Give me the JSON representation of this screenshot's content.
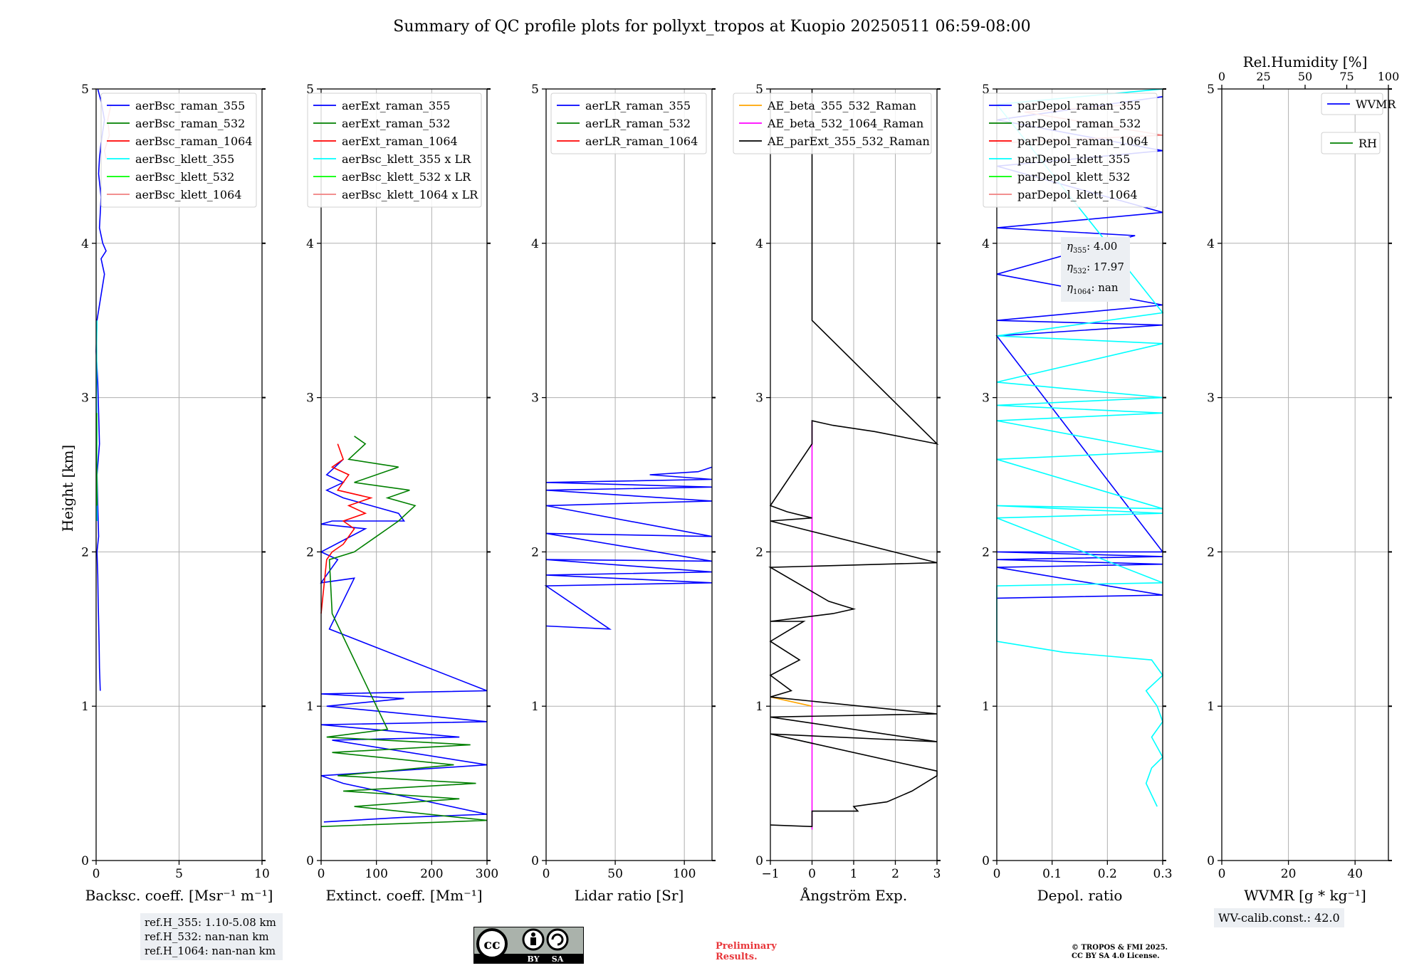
{
  "figure": {
    "title": "Summary of QC profile plots for pollyxt_tropos at Kuopio 20250511 06:59-08:00",
    "ylabel": "Height [km]",
    "colors": {
      "blue": "#0000ff",
      "green": "#008000",
      "red": "#ff0000",
      "cyan": "#00ffff",
      "lime": "#00ff00",
      "pink": "#f08080",
      "orange": "#ffa500",
      "magenta": "#ff00ff",
      "black": "#000000"
    }
  },
  "ref_heights": [
    "ref.H_355: 1.10-5.08 km",
    "ref.H_532: nan-nan km",
    "ref.H_1064: nan-nan km"
  ],
  "eta": {
    "e355_label": "η",
    "e355_sub": "355",
    "e355_value": ": 4.00",
    "e532_label": "η",
    "e532_sub": "532",
    "e532_value": ": 17.97",
    "e1064_label": "η",
    "e1064_sub": "1064",
    "e1064_value": ": nan"
  },
  "wv_calib": "WV-calib.const.: 42.0",
  "preliminary": [
    "Preliminary",
    "Results."
  ],
  "copyright": [
    "© TROPOS & FMI 2025.",
    "CC BY SA 4.0 License."
  ],
  "license_badge": {
    "by": "BY",
    "sa": "SA"
  },
  "chart_data": [
    {
      "type": "line",
      "xlabel": "Backsc. coeff. [Msr⁻¹ m⁻¹]",
      "ylabel": "Height [km]",
      "xlim": [
        0,
        10
      ],
      "ylim": [
        0,
        5
      ],
      "xticks": [
        0,
        5,
        10
      ],
      "yticks": [
        0,
        1,
        2,
        3,
        4,
        5
      ],
      "grid": true,
      "legend": "top-right",
      "series": [
        {
          "name": "aerBsc_raman_355",
          "color": "#0000ff",
          "x": [
            0.25,
            0.2,
            0.18,
            0.15,
            0.12,
            0.1,
            0.05,
            0.15,
            0.1,
            0.05,
            0.2,
            0.15,
            0.1,
            0.0,
            0.05,
            0.35,
            0.5,
            0.4,
            0.3,
            0.6,
            0.4,
            0.2,
            0.3,
            0.15,
            0.2,
            0.3,
            0.5,
            0.3,
            0.1
          ],
          "y": [
            1.1,
            1.25,
            1.4,
            1.55,
            1.7,
            1.85,
            2.0,
            2.1,
            2.3,
            2.5,
            2.7,
            2.9,
            3.1,
            3.3,
            3.5,
            3.7,
            3.8,
            3.85,
            3.9,
            3.95,
            4.0,
            4.1,
            4.3,
            4.45,
            4.55,
            4.65,
            4.8,
            4.92,
            5.0
          ]
        },
        {
          "name": "aerBsc_raman_532",
          "color": "#008000",
          "x": [],
          "y": []
        },
        {
          "name": "aerBsc_raman_1064",
          "color": "#ff0000",
          "x": [],
          "y": []
        },
        {
          "name": "aerBsc_klett_355",
          "color": "#00ffff",
          "x": [
            0.05,
            0.03,
            0.05,
            0.02,
            0.04,
            0.03,
            0.05
          ],
          "y": [
            2.2,
            2.5,
            2.8,
            3.0,
            3.2,
            3.35,
            3.5
          ]
        },
        {
          "name": "aerBsc_klett_532",
          "color": "#00ff00",
          "x": [
            0.05,
            0.03,
            0.04
          ],
          "y": [
            2.3,
            2.6,
            2.9
          ]
        },
        {
          "name": "aerBsc_klett_1064",
          "color": "#f08080",
          "x": [
            0.6,
            0.5,
            0.8,
            0.7,
            0.9
          ],
          "y": [
            4.55,
            4.6,
            4.7,
            4.8,
            4.9
          ]
        }
      ]
    },
    {
      "type": "line",
      "xlabel": "Extinct. coeff. [Mm⁻¹]",
      "ylabel": "",
      "xlim": [
        0,
        300
      ],
      "ylim": [
        0,
        5
      ],
      "xticks": [
        0,
        100,
        200,
        300
      ],
      "yticks": [
        0,
        1,
        2,
        3,
        4,
        5
      ],
      "grid": true,
      "legend": "top-right",
      "series": [
        {
          "name": "aerExt_raman_355",
          "color": "#0000ff",
          "x": [
            5,
            150,
            300,
            40,
            0,
            300,
            20,
            250,
            0,
            300,
            10,
            150,
            0,
            300,
            15,
            60,
            0,
            30,
            0,
            80,
            0,
            20,
            150,
            140,
            90,
            40,
            10,
            40,
            10,
            40
          ],
          "y": [
            0.25,
            0.28,
            0.3,
            0.5,
            0.55,
            0.62,
            0.78,
            0.8,
            0.88,
            0.9,
            1.0,
            1.05,
            1.08,
            1.1,
            1.5,
            1.83,
            1.8,
            1.95,
            2.0,
            2.15,
            2.18,
            2.2,
            2.2,
            2.25,
            2.3,
            2.35,
            2.4,
            2.45,
            2.5,
            2.6
          ]
        },
        {
          "name": "aerExt_raman_532",
          "color": "#008000",
          "x": [
            0,
            300,
            60,
            250,
            40,
            280,
            30,
            240,
            20,
            270,
            10,
            120,
            20,
            15,
            60,
            100,
            120,
            140,
            170,
            120,
            160,
            60,
            140,
            50,
            80,
            60
          ],
          "y": [
            0.22,
            0.26,
            0.35,
            0.4,
            0.45,
            0.5,
            0.55,
            0.62,
            0.7,
            0.75,
            0.8,
            0.85,
            1.6,
            1.95,
            2.0,
            2.1,
            2.15,
            2.2,
            2.3,
            2.35,
            2.4,
            2.45,
            2.55,
            2.6,
            2.7,
            2.75
          ]
        },
        {
          "name": "aerExt_raman_1064",
          "color": "#ff0000",
          "x": [
            0,
            10,
            20,
            40,
            50,
            60,
            40,
            80,
            50,
            90,
            30,
            50,
            20,
            40,
            30
          ],
          "y": [
            1.6,
            1.95,
            2.0,
            2.05,
            2.1,
            2.15,
            2.2,
            2.25,
            2.3,
            2.35,
            2.4,
            2.5,
            2.55,
            2.6,
            2.7
          ]
        },
        {
          "name": "aerBsc_klett_355 x LR",
          "color": "#00ffff",
          "x": [],
          "y": []
        },
        {
          "name": "aerBsc_klett_532 x LR",
          "color": "#00ff00",
          "x": [],
          "y": []
        },
        {
          "name": "aerBsc_klett_1064 x LR",
          "color": "#f08080",
          "x": [],
          "y": []
        }
      ]
    },
    {
      "type": "line",
      "xlabel": "Lidar ratio [Sr]",
      "ylabel": "",
      "xlim": [
        0,
        120
      ],
      "ylim": [
        0,
        5
      ],
      "xticks": [
        0,
        50,
        100
      ],
      "yticks": [
        0,
        1,
        2,
        3,
        4,
        5
      ],
      "grid": true,
      "legend": "top-right",
      "series": [
        {
          "name": "aerLR_raman_355",
          "color": "#0000ff",
          "x": [
            0,
            46,
            0,
            120,
            0,
            120,
            0,
            120,
            0,
            120,
            0,
            120,
            0,
            120,
            0,
            120,
            75,
            110,
            120
          ],
          "y": [
            1.52,
            1.5,
            1.78,
            1.8,
            1.85,
            1.87,
            1.95,
            1.94,
            2.12,
            2.1,
            2.3,
            2.33,
            2.4,
            2.42,
            2.45,
            2.47,
            2.5,
            2.52,
            2.55
          ]
        },
        {
          "name": "aerLR_raman_532",
          "color": "#008000",
          "x": [],
          "y": []
        },
        {
          "name": "aerLR_raman_1064",
          "color": "#ff0000",
          "x": [],
          "y": []
        }
      ]
    },
    {
      "type": "line",
      "xlabel": "Ångström Exp.",
      "ylabel": "",
      "xlim": [
        -1,
        3
      ],
      "ylim": [
        0,
        5
      ],
      "xticks": [
        -1,
        0,
        1,
        2,
        3
      ],
      "yticks": [
        0,
        1,
        2,
        3,
        4,
        5
      ],
      "grid": true,
      "legend": "top-right",
      "series": [
        {
          "name": "AE_beta_355_532_Raman",
          "color": "#ffa500",
          "x": [
            -1,
            0
          ],
          "y": [
            1.06,
            1.0
          ]
        },
        {
          "name": "AE_beta_532_1064_Raman",
          "color": "#ff00ff",
          "x": [
            0,
            0
          ],
          "y": [
            0.2,
            2.85
          ]
        },
        {
          "name": "AE_parExt_355_532_Raman",
          "color": "#000000",
          "x": [
            -1,
            0,
            0,
            0.4,
            1.1,
            1.0,
            1.8,
            2.4,
            3.0,
            3.0,
            -1,
            3.0,
            -1,
            3.0,
            -1,
            -0.5,
            -1,
            -0.3,
            -1,
            -0.2,
            -1,
            0.5,
            1.0,
            0.4,
            -1,
            3.0,
            -1,
            0,
            -0.6,
            -1,
            0,
            0,
            0.5,
            1.5,
            3.0,
            0,
            0
          ],
          "y": [
            0.23,
            0.22,
            0.32,
            0.32,
            0.32,
            0.35,
            0.38,
            0.45,
            0.55,
            0.58,
            0.82,
            0.77,
            0.93,
            0.95,
            1.06,
            1.1,
            1.2,
            1.3,
            1.42,
            1.55,
            1.55,
            1.6,
            1.63,
            1.68,
            1.9,
            1.93,
            2.2,
            2.22,
            2.26,
            2.3,
            2.7,
            2.85,
            2.82,
            2.78,
            2.7,
            3.5,
            5.0
          ]
        }
      ]
    },
    {
      "type": "line",
      "xlabel": "Depol. ratio",
      "ylabel": "",
      "xlim": [
        0,
        0.3
      ],
      "ylim": [
        0,
        5
      ],
      "xticks": [
        0,
        0.1,
        0.2,
        0.3
      ],
      "yticks": [
        0,
        1,
        2,
        3,
        4,
        5
      ],
      "grid": true,
      "legend": "top-right",
      "series": [
        {
          "name": "parDepol_raman_355",
          "color": "#0000ff",
          "x": [
            0,
            0.3,
            0,
            0.3,
            0,
            0.3,
            0,
            0.3,
            0,
            0.3,
            0,
            0.3,
            0,
            0.25,
            0,
            0.3,
            0,
            0.3,
            0,
            0.3
          ],
          "y": [
            1.7,
            1.72,
            1.9,
            1.92,
            1.95,
            1.97,
            2.0,
            2.0,
            3.4,
            3.47,
            3.5,
            3.6,
            3.8,
            4.05,
            4.1,
            4.2,
            4.5,
            4.6,
            4.8,
            4.95
          ]
        },
        {
          "name": "parDepol_raman_532",
          "color": "#008000",
          "x": [],
          "y": []
        },
        {
          "name": "parDepol_raman_1064",
          "color": "#ff0000",
          "x": [],
          "y": []
        },
        {
          "name": "parDepol_klett_355",
          "color": "#00ffff",
          "x": [
            0.29,
            0.27,
            0.28,
            0.3,
            0.28,
            0.3,
            0.29,
            0.27,
            0.3,
            0.28,
            0.12,
            0.0,
            0,
            0.3,
            0,
            0.3,
            0,
            0.3,
            0,
            0.3,
            0,
            0.3,
            0,
            0.3,
            0,
            0.3,
            0,
            0.3,
            0,
            0.3
          ],
          "y": [
            0.35,
            0.5,
            0.6,
            0.67,
            0.8,
            0.9,
            1.0,
            1.1,
            1.2,
            1.3,
            1.35,
            1.42,
            1.78,
            1.8,
            2.22,
            2.25,
            2.3,
            2.28,
            2.6,
            2.65,
            2.85,
            2.9,
            2.95,
            3.0,
            3.1,
            3.35,
            3.4,
            3.55,
            4.9,
            5.0
          ]
        },
        {
          "name": "parDepol_klett_532",
          "color": "#00ff00",
          "x": [],
          "y": []
        },
        {
          "name": "parDepol_klett_1064",
          "color": "#f08080",
          "x": [
            0.0,
            0.3,
            0.05,
            0.25
          ],
          "y": [
            4.65,
            4.7,
            4.85,
            4.9
          ]
        }
      ]
    },
    {
      "type": "line",
      "xlabel": "WVMR [g * kg⁻¹]",
      "x2label": "Rel.Humidity [%]",
      "ylabel": "",
      "xlim": [
        0,
        50
      ],
      "x2lim": [
        0,
        100
      ],
      "ylim": [
        0,
        5
      ],
      "xticks": [
        0,
        20,
        40
      ],
      "x2ticks": [
        0,
        25,
        50,
        75,
        100
      ],
      "yticks": [
        0,
        1,
        2,
        3,
        4,
        5
      ],
      "grid": true,
      "legend": "top-right",
      "series": [
        {
          "name": "WVMR",
          "color": "#0000ff",
          "x": [],
          "y": []
        },
        {
          "name": "RH",
          "color": "#008000",
          "x": [],
          "y": []
        }
      ]
    }
  ]
}
